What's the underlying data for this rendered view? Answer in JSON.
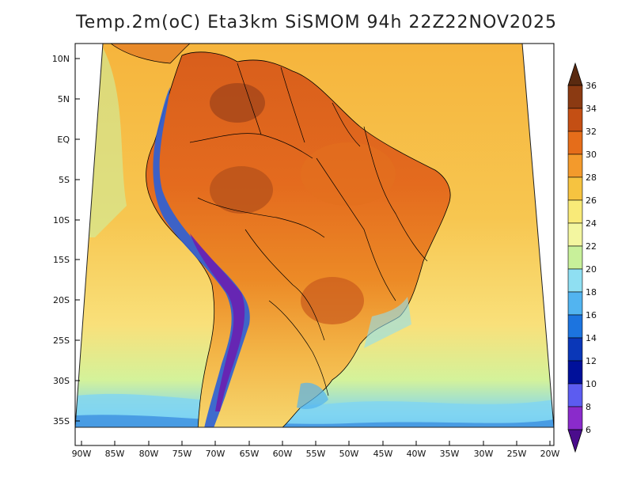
{
  "title": "Temp.2m(oC) Eta3km SiSMOM 94h 22Z22NOV2025",
  "lat_labels": [
    "10N",
    "5N",
    "EQ",
    "5S",
    "10S",
    "15S",
    "20S",
    "25S",
    "30S",
    "35S"
  ],
  "lon_labels": [
    "90W",
    "85W",
    "80W",
    "75W",
    "70W",
    "65W",
    "60W",
    "55W",
    "50W",
    "45W",
    "40W",
    "35W",
    "30W",
    "25W",
    "20W"
  ],
  "colorbar": {
    "labels": [
      "36",
      "34",
      "32",
      "30",
      "28",
      "26",
      "24",
      "22",
      "20",
      "18",
      "16",
      "14",
      "12",
      "10",
      "8",
      "6"
    ],
    "colors": [
      "#5a2a10",
      "#8b3a12",
      "#c44f14",
      "#e56d1a",
      "#f39a2c",
      "#f6c340",
      "#f9ea78",
      "#f3f6a0",
      "#c8f09a",
      "#8fdff2",
      "#52b4f0",
      "#1c74df",
      "#0a37b8",
      "#00109a",
      "#5c5cf0",
      "#8a2bcb",
      "#4a0c8c"
    ]
  },
  "map_colors": {
    "ocean_warm": "#f6b43c",
    "ocean_mid": "#f9e07a",
    "ocean_cool": "#d4f29a",
    "ocean_cold": "#7fd4f2",
    "land_hot": "#e46b1e",
    "land_very_hot": "#b8531a",
    "andes_cold": "#2a5fd8",
    "andes_coldest": "#6a1fb0",
    "border": "#000000"
  }
}
